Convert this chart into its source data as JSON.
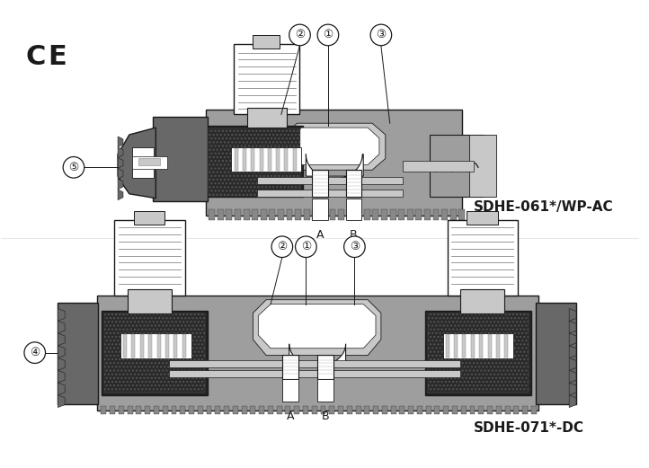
{
  "bg_color": "#ffffff",
  "ce_mark": "CE",
  "label_top_model": "SDHE-061*/WP-AC",
  "label_bottom_model": "SDHE-071*-DC",
  "gray_body": "#9e9e9e",
  "gray_light": "#c8c8c8",
  "gray_dark": "#686868",
  "black": "#1a1a1a",
  "white": "#ffffff",
  "coil_black": "#252525",
  "dot_color": "#333333"
}
